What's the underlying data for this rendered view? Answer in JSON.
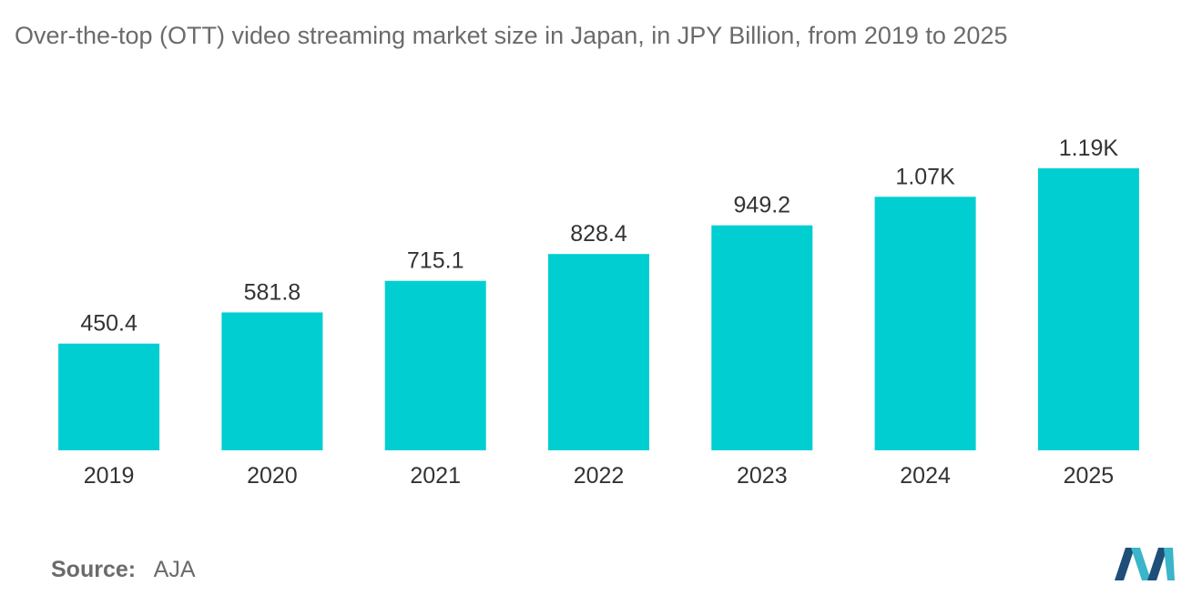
{
  "title": "Over-the-top (OTT) video streaming market size in Japan, in JPY Billion, from 2019 to 2025",
  "source": {
    "label": "Source:",
    "value": "AJA"
  },
  "colors": {
    "bar": "#00CED1",
    "text": "#333333",
    "title": "#6b6b6b",
    "logo_dark": "#1f4e79",
    "logo_light": "#3ab5c9"
  },
  "logo_icon": "brand-logo-icon",
  "chart_data": {
    "type": "bar",
    "title": "Over-the-top (OTT) video streaming market size in Japan, in JPY Billion, from 2019 to 2025",
    "categories": [
      "2019",
      "2020",
      "2021",
      "2022",
      "2023",
      "2024",
      "2025"
    ],
    "values": [
      450.4,
      581.8,
      715.1,
      828.4,
      949.2,
      1070,
      1190
    ],
    "data_labels": [
      "450.4",
      "581.8",
      "715.1",
      "828.4",
      "949.2",
      "1.07K",
      "1.19K"
    ],
    "xlabel": "",
    "ylabel": "",
    "ylim": [
      0,
      1270
    ],
    "grid": false,
    "legend": "none"
  }
}
